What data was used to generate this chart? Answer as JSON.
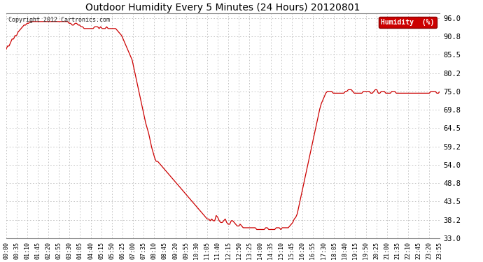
{
  "title": "Outdoor Humidity Every 5 Minutes (24 Hours) 20120801",
  "copyright": "Copyright 2012 Cartronics.com",
  "legend_label": "Humidity  (%)",
  "line_color": "#cc0000",
  "background_color": "#ffffff",
  "grid_color": "#aaaaaa",
  "ylim": [
    33.0,
    97.3
  ],
  "yticks": [
    33.0,
    38.2,
    43.5,
    48.8,
    54.0,
    59.2,
    64.5,
    69.8,
    75.0,
    80.2,
    85.5,
    90.8,
    96.0
  ],
  "ylabel_fontsize": 7.5,
  "xlabel_fontsize": 6,
  "title_fontsize": 10,
  "humidity_data": [
    87.0,
    88.0,
    88.0,
    89.0,
    90.0,
    90.0,
    91.0,
    91.0,
    92.0,
    92.5,
    93.0,
    93.5,
    94.0,
    94.0,
    94.5,
    94.5,
    95.0,
    95.0,
    95.0,
    95.0,
    95.0,
    95.0,
    95.0,
    95.0,
    95.0,
    95.0,
    95.0,
    95.0,
    95.0,
    95.0,
    95.0,
    95.0,
    95.0,
    95.0,
    95.0,
    95.0,
    95.0,
    95.0,
    95.0,
    95.0,
    95.0,
    95.0,
    94.5,
    94.5,
    94.0,
    94.0,
    94.5,
    94.5,
    94.0,
    94.0,
    93.5,
    93.5,
    93.0,
    93.0,
    93.0,
    93.0,
    93.0,
    93.0,
    93.0,
    93.5,
    93.5,
    93.5,
    93.0,
    93.5,
    93.0,
    93.0,
    93.0,
    93.5,
    93.0,
    93.0,
    93.0,
    93.0,
    93.0,
    93.0,
    92.5,
    92.0,
    91.5,
    91.0,
    90.0,
    89.0,
    88.0,
    87.0,
    86.0,
    85.0,
    84.0,
    82.0,
    80.0,
    78.0,
    76.0,
    74.0,
    72.0,
    70.0,
    68.0,
    66.0,
    64.5,
    63.0,
    61.0,
    59.0,
    57.5,
    56.0,
    55.0,
    55.0,
    54.5,
    54.0,
    53.5,
    53.0,
    52.5,
    52.0,
    51.5,
    51.0,
    50.5,
    50.0,
    49.5,
    49.0,
    48.5,
    48.0,
    47.5,
    47.0,
    46.5,
    46.0,
    45.5,
    45.0,
    44.5,
    44.0,
    43.5,
    43.0,
    42.5,
    42.0,
    41.5,
    41.0,
    40.5,
    40.0,
    39.5,
    39.0,
    38.5,
    38.5,
    38.0,
    38.5,
    38.0,
    38.0,
    39.5,
    39.0,
    38.0,
    37.5,
    37.5,
    38.0,
    38.5,
    37.5,
    37.0,
    37.0,
    38.0,
    38.0,
    37.5,
    37.0,
    36.5,
    36.5,
    37.0,
    36.5,
    36.0,
    36.0,
    36.0,
    36.0,
    36.0,
    36.0,
    36.0,
    36.0,
    36.0,
    35.5,
    35.5,
    35.5,
    35.5,
    35.5,
    35.5,
    36.0,
    36.0,
    35.5,
    35.5,
    35.5,
    35.5,
    35.5,
    36.0,
    36.0,
    36.0,
    35.5,
    36.0,
    36.0,
    36.0,
    36.0,
    36.0,
    36.5,
    37.0,
    37.5,
    38.5,
    39.0,
    40.0,
    42.0,
    44.0,
    46.0,
    48.0,
    50.0,
    52.0,
    54.0,
    56.0,
    58.0,
    60.0,
    62.0,
    64.0,
    66.0,
    68.0,
    70.0,
    71.5,
    72.5,
    73.5,
    74.5,
    75.0,
    75.0,
    75.0,
    75.0,
    74.5,
    74.5,
    74.5,
    74.5,
    74.5,
    74.5,
    74.5,
    74.5,
    75.0,
    75.0,
    75.5,
    75.5,
    75.5,
    75.0,
    74.5,
    74.5,
    74.5,
    74.5,
    74.5,
    74.5,
    75.0,
    75.0,
    75.0,
    75.0,
    75.0,
    74.5,
    74.5,
    75.0,
    75.5,
    75.5,
    74.5,
    74.5,
    75.0,
    75.0,
    75.0,
    74.5,
    74.5,
    74.5,
    74.5,
    75.0,
    75.0,
    75.0,
    74.5,
    74.5,
    74.5,
    74.5,
    74.5,
    74.5,
    74.5,
    74.5,
    74.5,
    74.5,
    74.5,
    74.5,
    74.5,
    74.5,
    74.5,
    74.5,
    74.5,
    74.5,
    74.5,
    74.5,
    74.5,
    74.5,
    74.5,
    75.0,
    75.0,
    75.0,
    75.0,
    74.5,
    74.5,
    75.0
  ],
  "xtick_labels": [
    "00:00",
    "00:35",
    "01:10",
    "01:45",
    "02:20",
    "02:55",
    "03:30",
    "04:05",
    "04:40",
    "05:15",
    "05:50",
    "06:25",
    "07:00",
    "07:35",
    "08:10",
    "08:45",
    "09:20",
    "09:55",
    "10:30",
    "11:05",
    "11:40",
    "12:15",
    "12:50",
    "13:25",
    "14:00",
    "14:35",
    "15:10",
    "15:45",
    "16:20",
    "16:55",
    "17:30",
    "18:05",
    "18:40",
    "19:15",
    "19:50",
    "20:25",
    "21:00",
    "21:35",
    "22:10",
    "22:45",
    "23:20",
    "23:55"
  ]
}
